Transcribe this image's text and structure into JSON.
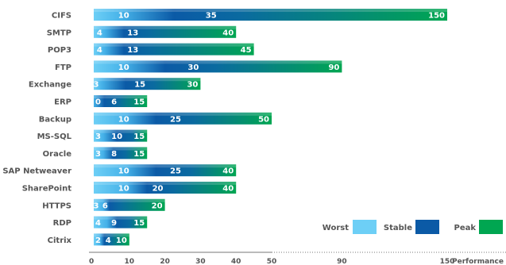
{
  "chart_data": {
    "type": "bar",
    "orientation": "horizontal",
    "stacked_gradient": true,
    "categories": [
      "CIFS",
      "SMTP",
      "POP3",
      "FTP",
      "Exchange",
      "ERP",
      "Backup",
      "MS-SQL",
      "Oracle",
      "SAP Netweaver",
      "SharePoint",
      "HTTPS",
      "RDP",
      "Citrix"
    ],
    "series": [
      {
        "name": "Worst",
        "color": "#6dcff6",
        "values": [
          10,
          4,
          4,
          10,
          3,
          0,
          10,
          3,
          3,
          10,
          10,
          3,
          4,
          2
        ]
      },
      {
        "name": "Stable",
        "color": "#0b5aa6",
        "values": [
          35,
          13,
          13,
          30,
          15,
          6,
          25,
          10,
          8,
          25,
          20,
          6,
          9,
          4
        ]
      },
      {
        "name": "Peak",
        "color": "#00a651",
        "values": [
          150,
          40,
          45,
          90,
          30,
          15,
          50,
          15,
          15,
          40,
          40,
          20,
          15,
          10
        ]
      }
    ],
    "x_ticks": [
      0,
      10,
      20,
      30,
      40,
      50,
      90,
      150
    ],
    "x_tick_labels": [
      "0",
      "10",
      "20",
      "30",
      "40",
      "50",
      "90",
      "150"
    ],
    "xlabel": "Performance",
    "xlim": [
      0,
      150
    ],
    "axis_scale": "piecewise: linear 0-50, compressed 50-150",
    "grid": false,
    "legend_position": "bottom-right"
  }
}
